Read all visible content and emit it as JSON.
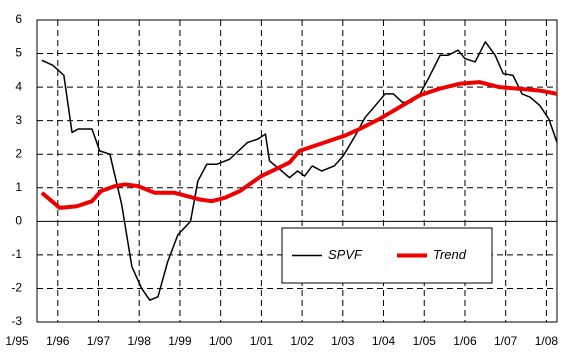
{
  "chart_data": {
    "type": "line",
    "xlim": [
      1995.49,
      2008.26
    ],
    "xticks": [
      {
        "value": 1995,
        "label": "1/95"
      },
      {
        "value": 1996,
        "label": "1/96"
      },
      {
        "value": 1997,
        "label": "1/97"
      },
      {
        "value": 1998,
        "label": "1/98"
      },
      {
        "value": 1999,
        "label": "1/99"
      },
      {
        "value": 2000,
        "label": "1/00"
      },
      {
        "value": 2001,
        "label": "1/01"
      },
      {
        "value": 2002,
        "label": "1/02"
      },
      {
        "value": 2003,
        "label": "1/03"
      },
      {
        "value": 2004,
        "label": "1/04"
      },
      {
        "value": 2005,
        "label": "1/05"
      },
      {
        "value": 2006,
        "label": "1/06"
      },
      {
        "value": 2007,
        "label": "1/07"
      },
      {
        "value": 2008,
        "label": "1/08"
      }
    ],
    "ylim": [
      -3,
      6
    ],
    "yticks": [
      -3,
      -2,
      -1,
      0,
      1,
      2,
      3,
      4,
      5,
      6
    ],
    "grid": true,
    "legend": "lower right",
    "series": [
      {
        "name": "SPVF",
        "color": "#000000",
        "x": [
          1995.61,
          1995.88,
          1996.15,
          1996.35,
          1996.5,
          1996.84,
          1997.03,
          1997.28,
          1997.57,
          1997.82,
          1998.06,
          1998.26,
          1998.46,
          1998.7,
          1998.95,
          1999.26,
          1999.44,
          1999.66,
          1999.9,
          2000.22,
          2000.66,
          2000.91,
          2001.1,
          2001.2,
          2001.5,
          2001.69,
          2001.89,
          2002.06,
          2002.25,
          2002.48,
          2002.79,
          2003.01,
          2003.28,
          2003.55,
          2003.8,
          2004.04,
          2004.24,
          2004.46,
          2004.68,
          2004.9,
          2005.12,
          2005.39,
          2005.59,
          2005.83,
          2006.0,
          2006.25,
          2006.5,
          2006.74,
          2006.94,
          2007.18,
          2007.4,
          2007.6,
          2007.84,
          2008.06,
          2008.26
        ],
        "values": [
          4.8,
          4.65,
          4.35,
          2.65,
          2.75,
          2.75,
          2.1,
          2.0,
          0.5,
          -1.35,
          -2.0,
          -2.35,
          -2.25,
          -1.2,
          -0.4,
          0.0,
          1.2,
          1.7,
          1.7,
          1.85,
          2.35,
          2.45,
          2.6,
          1.8,
          1.5,
          1.3,
          1.5,
          1.35,
          1.65,
          1.5,
          1.65,
          1.95,
          2.5,
          3.1,
          3.45,
          3.8,
          3.8,
          3.55,
          3.55,
          3.8,
          4.3,
          4.95,
          4.95,
          5.1,
          4.85,
          4.75,
          5.35,
          4.95,
          4.4,
          4.35,
          3.8,
          3.7,
          3.45,
          3.05,
          2.35
        ]
      },
      {
        "name": "Trend",
        "color": "#ee0000",
        "x": [
          1995.61,
          1996.05,
          1996.47,
          1996.84,
          1997.06,
          1997.4,
          1997.65,
          1997.97,
          1998.38,
          1998.87,
          1999.49,
          1999.78,
          2000.1,
          2000.47,
          2001.0,
          2001.69,
          2001.94,
          2002.43,
          2003.04,
          2003.41,
          2003.9,
          2004.39,
          2004.88,
          2005.37,
          2005.86,
          2006.35,
          2006.84,
          2007.33,
          2007.82,
          2008.26
        ],
        "values": [
          0.85,
          0.4,
          0.45,
          0.6,
          0.9,
          1.05,
          1.1,
          1.05,
          0.85,
          0.85,
          0.65,
          0.6,
          0.7,
          0.9,
          1.35,
          1.75,
          2.1,
          2.3,
          2.55,
          2.75,
          3.05,
          3.4,
          3.75,
          3.95,
          4.1,
          4.15,
          4.0,
          3.95,
          3.9,
          3.8
        ]
      }
    ]
  }
}
